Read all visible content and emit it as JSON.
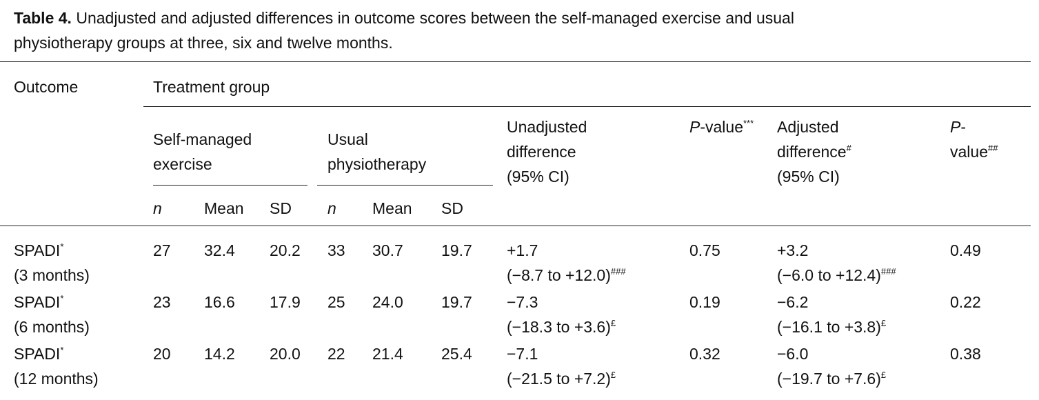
{
  "caption": {
    "label": "Table 4.",
    "text": "Unadjusted and adjusted differences in outcome scores between the self-managed exercise and usual",
    "text_line2": "physiotherapy groups at three, six and twelve months."
  },
  "headers": {
    "outcome": "Outcome",
    "treatment_group": "Treatment group",
    "self_managed_1": "Self-managed",
    "self_managed_2": "exercise",
    "usual_1": "Usual",
    "usual_2": "physiotherapy",
    "unadj_1": "Unadjusted",
    "unadj_2": "difference",
    "unadj_3": "(95% CI)",
    "p1_italic": "P",
    "p1_rest": "-value",
    "p1_sup": "***",
    "adj_1": "Adjusted",
    "adj_2": "difference",
    "adj_2_sup": "#",
    "adj_3": "(95% CI)",
    "p2_italic": "P",
    "p2_1": "-",
    "p2_2": "value",
    "p2_sup": "##",
    "n": "n",
    "mean": "Mean",
    "sd": "SD"
  },
  "rows": [
    {
      "outcome": "SPADI",
      "outcome_sup": "*",
      "period": "(3 months)",
      "sm_n": "27",
      "sm_mean": "32.4",
      "sm_sd": "20.2",
      "up_n": "33",
      "up_mean": "30.7",
      "up_sd": "19.7",
      "unadj": "+1.7",
      "unadj_ci": "(−8.7 to +12.0)",
      "unadj_sup": "###",
      "p1": "0.75",
      "adj": "+3.2",
      "adj_ci": "(−6.0 to +12.4)",
      "adj_sup": "###",
      "p2": "0.49"
    },
    {
      "outcome": "SPADI",
      "outcome_sup": "*",
      "period": "(6 months)",
      "sm_n": "23",
      "sm_mean": "16.6",
      "sm_sd": "17.9",
      "up_n": "25",
      "up_mean": "24.0",
      "up_sd": "19.7",
      "unadj": "−7.3",
      "unadj_ci": "(−18.3 to +3.6)",
      "unadj_sup": "£",
      "p1": "0.19",
      "adj": "−6.2",
      "adj_ci": "(−16.1 to +3.8)",
      "adj_sup": "£",
      "p2": "0.22"
    },
    {
      "outcome": "SPADI",
      "outcome_sup": "*",
      "period": "(12 months)",
      "sm_n": "20",
      "sm_mean": "14.2",
      "sm_sd": "20.0",
      "up_n": "22",
      "up_mean": "21.4",
      "up_sd": "25.4",
      "unadj": "−7.1",
      "unadj_ci": "(−21.5 to +7.2)",
      "unadj_sup": "£",
      "p1": "0.32",
      "adj": "−6.0",
      "adj_ci": "(−19.7 to +7.6)",
      "adj_sup": "£",
      "p2": "0.38"
    }
  ]
}
